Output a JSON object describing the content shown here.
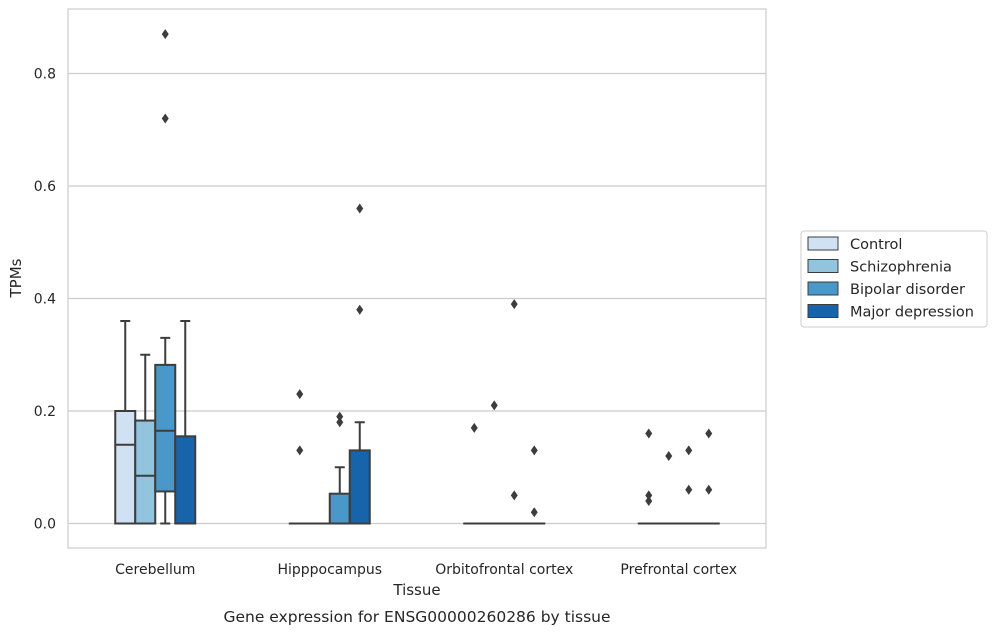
{
  "chart_data": {
    "type": "box",
    "caption": "Gene expression for ENSG00000260286 by tissue",
    "xlabel": "Tissue",
    "ylabel": "TPMs",
    "ylim": [
      -0.043,
      0.915
    ],
    "yticks": [
      0.0,
      0.2,
      0.4,
      0.6,
      0.8
    ],
    "ytick_labels": [
      "0.0",
      "0.2",
      "0.4",
      "0.6",
      "0.8"
    ],
    "grid": "horizontal",
    "legend_position": "right",
    "categories": [
      "Cerebellum",
      "Hipppocampus",
      "Orbitofrontal cortex",
      "Prefrontal cortex"
    ],
    "series": [
      {
        "name": "Control",
        "color": "#cfe1f2",
        "boxes": [
          {
            "q1": 0.0,
            "median": 0.14,
            "q3": 0.2,
            "whisker_low": 0.0,
            "whisker_high": 0.36,
            "outliers": []
          },
          {
            "q1": 0.0,
            "median": 0.0,
            "q3": 0.0,
            "whisker_low": 0.0,
            "whisker_high": 0.0,
            "outliers": [
              0.13,
              0.23
            ]
          },
          {
            "q1": 0.0,
            "median": 0.0,
            "q3": 0.0,
            "whisker_low": 0.0,
            "whisker_high": 0.0,
            "outliers": [
              0.17
            ]
          },
          {
            "q1": 0.0,
            "median": 0.0,
            "q3": 0.0,
            "whisker_low": 0.0,
            "whisker_high": 0.0,
            "outliers": [
              0.04,
              0.05,
              0.16
            ]
          }
        ]
      },
      {
        "name": "Schizophrenia",
        "color": "#93c4de",
        "boxes": [
          {
            "q1": 0.0,
            "median": 0.085,
            "q3": 0.183,
            "whisker_low": 0.0,
            "whisker_high": 0.3,
            "outliers": []
          },
          {
            "q1": 0.0,
            "median": 0.0,
            "q3": 0.0,
            "whisker_low": 0.0,
            "whisker_high": 0.0,
            "outliers": []
          },
          {
            "q1": 0.0,
            "median": 0.0,
            "q3": 0.0,
            "whisker_low": 0.0,
            "whisker_high": 0.0,
            "outliers": [
              0.21
            ]
          },
          {
            "q1": 0.0,
            "median": 0.0,
            "q3": 0.0,
            "whisker_low": 0.0,
            "whisker_high": 0.0,
            "outliers": [
              0.12
            ]
          }
        ]
      },
      {
        "name": "Bipolar disorder",
        "color": "#4a98c9",
        "boxes": [
          {
            "q1": 0.057,
            "median": 0.165,
            "q3": 0.282,
            "whisker_low": 0.0,
            "whisker_high": 0.33,
            "outliers": [
              0.72,
              0.87
            ]
          },
          {
            "q1": 0.0,
            "median": 0.0,
            "q3": 0.053,
            "whisker_low": 0.0,
            "whisker_high": 0.1,
            "outliers": [
              0.18,
              0.19
            ]
          },
          {
            "q1": 0.0,
            "median": 0.0,
            "q3": 0.0,
            "whisker_low": 0.0,
            "whisker_high": 0.0,
            "outliers": [
              0.05,
              0.39
            ]
          },
          {
            "q1": 0.0,
            "median": 0.0,
            "q3": 0.0,
            "whisker_low": 0.0,
            "whisker_high": 0.0,
            "outliers": [
              0.06,
              0.13
            ]
          }
        ]
      },
      {
        "name": "Major depression",
        "color": "#1764ab",
        "boxes": [
          {
            "q1": 0.0,
            "median": 0.0,
            "q3": 0.155,
            "whisker_low": 0.0,
            "whisker_high": 0.36,
            "outliers": []
          },
          {
            "q1": 0.0,
            "median": 0.0,
            "q3": 0.13,
            "whisker_low": 0.0,
            "whisker_high": 0.18,
            "outliers": [
              0.38,
              0.56
            ]
          },
          {
            "q1": 0.0,
            "median": 0.0,
            "q3": 0.0,
            "whisker_low": 0.0,
            "whisker_high": 0.0,
            "outliers": [
              0.02,
              0.13
            ]
          },
          {
            "q1": 0.0,
            "median": 0.0,
            "q3": 0.0,
            "whisker_low": 0.0,
            "whisker_high": 0.0,
            "outliers": [
              0.06,
              0.16
            ]
          }
        ]
      }
    ],
    "colors": {
      "grid": "#cccccc",
      "frame": "#cccccc",
      "box_edge": "#3d3d3d",
      "outlier": "#3d3d3d",
      "legend_border": "#cccccc"
    }
  }
}
